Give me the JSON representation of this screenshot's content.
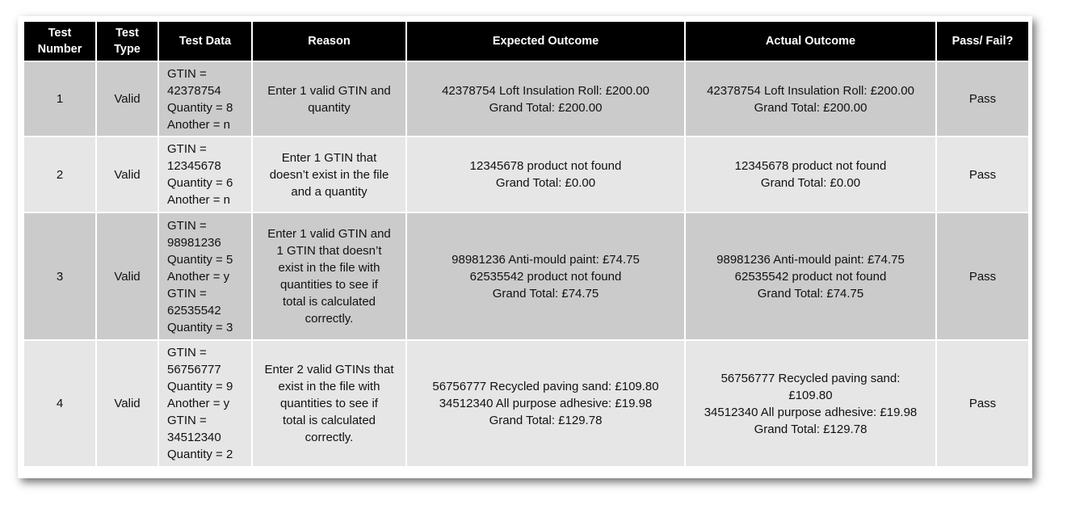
{
  "headers": [
    "Test Number",
    "Test Type",
    "Test Data",
    "Reason",
    "Expected Outcome",
    "Actual Outcome",
    "Pass/ Fail?"
  ],
  "header_lines": [
    [
      "Test",
      "Number"
    ],
    [
      "Test",
      "Type"
    ],
    [
      "Test Data"
    ],
    [
      "Reason"
    ],
    [
      "Expected Outcome"
    ],
    [
      "Actual Outcome"
    ],
    [
      "Pass/ Fail?"
    ]
  ],
  "rows": [
    {
      "number": "1",
      "type": "Valid",
      "data": [
        "GTIN =",
        "42378754",
        "Quantity = 8",
        "Another = n"
      ],
      "reason": [
        "Enter 1 valid GTIN and",
        "quantity"
      ],
      "expected": [
        "42378754 Loft Insulation Roll: £200.00",
        "Grand Total: £200.00"
      ],
      "actual": [
        "42378754 Loft Insulation Roll: £200.00",
        "Grand Total: £200.00"
      ],
      "result": "Pass"
    },
    {
      "number": "2",
      "type": "Valid",
      "data": [
        "GTIN =",
        "12345678",
        "Quantity = 6",
        "Another = n"
      ],
      "reason": [
        "Enter 1 GTIN that",
        "doesn’t exist in the file",
        "and a quantity"
      ],
      "expected": [
        "12345678 product not found",
        "Grand Total: £0.00"
      ],
      "actual": [
        "12345678 product not found",
        "Grand Total: £0.00"
      ],
      "result": "Pass"
    },
    {
      "number": "3",
      "type": "Valid",
      "data": [
        "GTIN =",
        "98981236",
        "Quantity = 5",
        "Another = y",
        "GTIN =",
        "62535542",
        "Quantity = 3"
      ],
      "reason": [
        "Enter 1 valid GTIN and",
        "1 GTIN that doesn’t",
        "exist in the file with",
        "quantities to see if",
        "total is calculated",
        "correctly."
      ],
      "expected": [
        "98981236 Anti-mould paint: £74.75",
        "62535542 product not found",
        "Grand Total: £74.75"
      ],
      "actual": [
        "98981236 Anti-mould paint: £74.75",
        "62535542 product not found",
        "Grand Total: £74.75"
      ],
      "result": "Pass"
    },
    {
      "number": "4",
      "type": "Valid",
      "data": [
        "GTIN =",
        "56756777",
        "Quantity = 9",
        "Another = y",
        "GTIN =",
        "34512340",
        "Quantity = 2"
      ],
      "reason": [
        "Enter 2 valid GTINs that",
        "exist in the file with",
        "quantities to see if",
        "total is calculated",
        "correctly."
      ],
      "expected": [
        "56756777 Recycled paving sand: £109.80",
        "34512340 All purpose adhesive: £19.98",
        "Grand Total: £129.78"
      ],
      "actual": [
        "56756777 Recycled paving sand:",
        "£109.80",
        "34512340 All purpose adhesive: £19.98",
        "Grand Total: £129.78"
      ],
      "result": "Pass"
    }
  ]
}
